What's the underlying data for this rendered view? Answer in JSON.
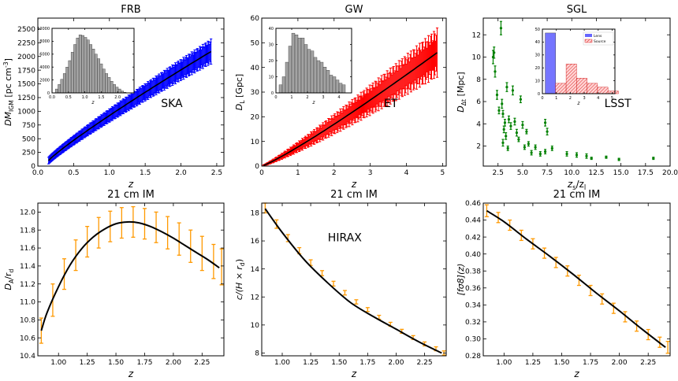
{
  "chart_data": [
    {
      "id": "frb",
      "type": "scatter",
      "style": "errorbar-band",
      "title": "FRB",
      "xlabel": "z",
      "ylabel": "DM_IGM [pc cm^-3]",
      "ylabel_parts": [
        "DM",
        "IGM",
        " [pc cm",
        "-3",
        "]"
      ],
      "xlim": [
        0,
        2.6
      ],
      "ylim": [
        0,
        2700
      ],
      "xticks": [
        0.0,
        0.5,
        1.0,
        1.5,
        2.0,
        2.5
      ],
      "xtick_labels": [
        "0.0",
        "0.5",
        "1.0",
        "1.5",
        "2.0",
        "2.5"
      ],
      "yticks": [
        0,
        250,
        500,
        750,
        1000,
        1250,
        1500,
        1750,
        2000,
        2250,
        2500
      ],
      "ytick_labels": [
        "0",
        "250",
        "500",
        "750",
        "1000",
        "1250",
        "1500",
        "1750",
        "2000",
        "2250",
        "2500"
      ],
      "annotation": "SKA",
      "color": "#0000ff",
      "x_range": [
        0.15,
        2.42
      ],
      "y_at_xmin": 100,
      "y_at_xmax": 2090,
      "curve_exponent": 0.9,
      "err_at_xmin": 60,
      "err_at_xmax": 230,
      "n_points": 220,
      "inset": {
        "type": "bar",
        "xlabel": "z",
        "xlim": [
          0,
          2.5
        ],
        "ylim": [
          0,
          10000
        ],
        "xticks": [
          0.0,
          0.5,
          1.0,
          1.5,
          2.0
        ],
        "xtick_labels": [
          "0.0",
          "0.5",
          "1.0",
          "1.5",
          "2.0"
        ],
        "yticks": [
          0,
          2000,
          4000,
          6000,
          8000,
          10000
        ],
        "ytick_labels": [
          "0",
          "2000",
          "4000",
          "6000",
          "8000",
          "10000"
        ],
        "bin_edges_start": 0.1,
        "bin_width": 0.08,
        "values": [
          600,
          1300,
          2100,
          3000,
          4000,
          5000,
          6300,
          7500,
          8500,
          9000,
          8900,
          8600,
          8200,
          7500,
          6800,
          6000,
          5300,
          4500,
          3700,
          3000,
          2400,
          1800,
          1300,
          900,
          600,
          300,
          100
        ],
        "color": "#999999"
      }
    },
    {
      "id": "gw",
      "type": "scatter",
      "style": "errorbar-band",
      "title": "GW",
      "xlabel": "z",
      "ylabel": "D_L [Gpc]",
      "ylabel_parts": [
        "D",
        "L",
        " [Gpc]"
      ],
      "xlim": [
        0,
        5.1
      ],
      "ylim": [
        0,
        60
      ],
      "xticks": [
        0,
        1,
        2,
        3,
        4,
        5
      ],
      "xtick_labels": [
        "0",
        "1",
        "2",
        "3",
        "4",
        "5"
      ],
      "yticks": [
        0,
        10,
        20,
        30,
        40,
        50,
        60
      ],
      "ytick_labels": [
        "0",
        "10",
        "20",
        "30",
        "40",
        "50",
        "60"
      ],
      "annotation": "ET",
      "color": "#ff0000",
      "x_range": [
        0.05,
        4.85
      ],
      "y_at_xmin": 0.3,
      "y_at_xmax": 46,
      "curve_exponent": 1.12,
      "err_at_xmin": 0.2,
      "err_at_xmax": 10,
      "n_points": 220,
      "inset": {
        "type": "bar",
        "xlabel": "z",
        "xlim": [
          0,
          4.8
        ],
        "ylim": [
          0,
          40
        ],
        "xticks": [
          0,
          1,
          2,
          3,
          4
        ],
        "xtick_labels": [
          "0",
          "1",
          "2",
          "3",
          "4"
        ],
        "yticks": [
          0,
          10,
          20,
          30,
          40
        ],
        "ytick_labels": [
          "0",
          "10",
          "20",
          "30",
          "40"
        ],
        "bin_edges_start": 0.2,
        "bin_width": 0.2,
        "values": [
          5,
          10,
          19,
          29,
          37,
          36,
          34,
          34,
          30,
          27,
          26,
          22,
          20,
          19,
          16,
          14,
          11,
          10,
          8,
          6,
          5
        ],
        "color": "#999999"
      }
    },
    {
      "id": "sgl",
      "type": "scatter",
      "style": "errorbar-points",
      "title": "SGL",
      "xlabel": "z_s/z_l",
      "ylabel": "D_Δt [Mpc]",
      "xlabel_parts": [
        "z",
        "s",
        "/z",
        "l"
      ],
      "ylabel_parts": [
        "D",
        "Δt",
        " [Mpc]"
      ],
      "xlim": [
        1,
        20
      ],
      "ylim": [
        0.2,
        13.5
      ],
      "xticks": [
        2.5,
        5.0,
        7.5,
        10.0,
        12.5,
        15.0,
        17.5,
        20.0
      ],
      "xtick_labels": [
        "2.5",
        "5.0",
        "7.5",
        "10.0",
        "12.5",
        "15.0",
        "17.5",
        "20.0"
      ],
      "yticks": [
        2,
        4,
        6,
        8,
        10,
        12
      ],
      "ytick_labels": [
        "2",
        "4",
        "6",
        "8",
        "10",
        "12"
      ],
      "annotation": "LSST",
      "color": "#008000",
      "points": [
        [
          2.0,
          10.0,
          0.6
        ],
        [
          2.1,
          10.4,
          0.5
        ],
        [
          2.2,
          8.7,
          0.5
        ],
        [
          2.4,
          6.6,
          0.4
        ],
        [
          2.8,
          12.6,
          0.6
        ],
        [
          2.9,
          5.8,
          0.4
        ],
        [
          2.6,
          5.2,
          0.3
        ],
        [
          3.0,
          4.9,
          0.3
        ],
        [
          3.2,
          4.1,
          0.3
        ],
        [
          3.4,
          7.3,
          0.4
        ],
        [
          3.6,
          4.4,
          0.3
        ],
        [
          3.1,
          3.5,
          0.3
        ],
        [
          3.3,
          2.9,
          0.3
        ],
        [
          3.0,
          2.3,
          0.3
        ],
        [
          3.5,
          1.8,
          0.2
        ],
        [
          3.8,
          3.8,
          0.3
        ],
        [
          4.0,
          7.0,
          0.4
        ],
        [
          4.2,
          4.2,
          0.3
        ],
        [
          4.4,
          3.2,
          0.3
        ],
        [
          4.6,
          2.6,
          0.2
        ],
        [
          4.8,
          6.2,
          0.3
        ],
        [
          5.0,
          3.9,
          0.3
        ],
        [
          5.2,
          1.9,
          0.2
        ],
        [
          5.4,
          3.3,
          0.2
        ],
        [
          5.6,
          2.2,
          0.2
        ],
        [
          5.9,
          1.4,
          0.2
        ],
        [
          6.3,
          1.9,
          0.2
        ],
        [
          6.8,
          1.3,
          0.2
        ],
        [
          7.3,
          1.5,
          0.2
        ],
        [
          7.5,
          3.3,
          0.3
        ],
        [
          7.3,
          4.1,
          0.3
        ],
        [
          8.0,
          1.8,
          0.2
        ],
        [
          9.5,
          1.3,
          0.2
        ],
        [
          10.5,
          1.2,
          0.2
        ],
        [
          11.5,
          1.1,
          0.2
        ],
        [
          12.0,
          0.9,
          0.1
        ],
        [
          13.5,
          1.0,
          0.1
        ],
        [
          14.8,
          0.8,
          0.1
        ],
        [
          18.3,
          0.9,
          0.1
        ]
      ],
      "inset": {
        "type": "bar",
        "xlabel": "z",
        "xlim": [
          0,
          5.2
        ],
        "ylim": [
          0,
          50
        ],
        "xticks": [
          0,
          1,
          2,
          3,
          4,
          5
        ],
        "xtick_labels": [
          "0",
          "1",
          "2",
          "3",
          "4",
          "5"
        ],
        "yticks": [
          0,
          10,
          20,
          30,
          40,
          50
        ],
        "ytick_labels": [
          "0",
          "10",
          "20",
          "30",
          "40",
          "50"
        ],
        "legend": [
          "Lens",
          "Source"
        ],
        "legend_position": "top-right",
        "series": [
          {
            "name": "Lens",
            "bin_edges_start": 0.2,
            "bin_width": 0.75,
            "values": [
              47,
              3
            ],
            "color": "#6666ff"
          },
          {
            "name": "Source",
            "bin_edges_start": 0.2,
            "bin_width": 0.75,
            "values": [
              0,
              8,
              23,
              12,
              8,
              5,
              2
            ],
            "color": "#ff6666"
          }
        ]
      }
    },
    {
      "id": "im_da",
      "type": "line",
      "style": "errorbar-curve",
      "title": "21 cm IM",
      "xlabel": "z",
      "ylabel": "D_A/r_d",
      "ylabel_parts": [
        "D",
        "A",
        "/r",
        "d"
      ],
      "xlim": [
        0.82,
        2.44
      ],
      "ylim": [
        10.4,
        12.1
      ],
      "xticks": [
        1.0,
        1.25,
        1.5,
        1.75,
        2.0,
        2.25
      ],
      "xtick_labels": [
        "1.00",
        "1.25",
        "1.50",
        "1.75",
        "2.00",
        "2.25"
      ],
      "yticks": [
        10.4,
        10.6,
        10.8,
        11.0,
        11.2,
        11.4,
        11.6,
        11.8,
        12.0
      ],
      "ytick_labels": [
        "10.4",
        "10.6",
        "10.8",
        "11.0",
        "11.2",
        "11.4",
        "11.6",
        "11.8",
        "12.0"
      ],
      "color": "#ff9900",
      "curve_x": [
        0.85,
        0.9,
        1.0,
        1.1,
        1.2,
        1.3,
        1.4,
        1.5,
        1.6,
        1.7,
        1.8,
        1.9,
        2.0,
        2.1,
        2.2,
        2.3,
        2.4
      ],
      "curve_y": [
        10.68,
        10.88,
        11.17,
        11.41,
        11.59,
        11.72,
        11.81,
        11.87,
        11.89,
        11.88,
        11.84,
        11.78,
        11.71,
        11.63,
        11.55,
        11.47,
        11.38
      ],
      "points_x": [
        0.85,
        0.95,
        1.05,
        1.15,
        1.25,
        1.35,
        1.45,
        1.55,
        1.65,
        1.75,
        1.85,
        1.95,
        2.05,
        2.15,
        2.25,
        2.35,
        2.42
      ],
      "points_y": [
        10.68,
        11.02,
        11.31,
        11.52,
        11.67,
        11.77,
        11.84,
        11.88,
        11.89,
        11.87,
        11.83,
        11.77,
        11.7,
        11.62,
        11.54,
        11.45,
        11.39
      ],
      "errors": [
        0.14,
        0.18,
        0.17,
        0.17,
        0.17,
        0.17,
        0.17,
        0.17,
        0.17,
        0.17,
        0.17,
        0.18,
        0.18,
        0.18,
        0.19,
        0.19,
        0.2
      ]
    },
    {
      "id": "im_hz",
      "type": "line",
      "style": "errorbar-curve",
      "title": "21 cm IM",
      "xlabel": "z",
      "ylabel": "c/(H × r_d)",
      "ylabel_parts": [
        "c/(H × r",
        "d",
        ")"
      ],
      "annotation": "HIRAX",
      "xlim": [
        0.82,
        2.44
      ],
      "ylim": [
        7.8,
        18.7
      ],
      "xticks": [
        1.0,
        1.25,
        1.5,
        1.75,
        2.0,
        2.25
      ],
      "xtick_labels": [
        "1.00",
        "1.25",
        "1.50",
        "1.75",
        "2.00",
        "2.25"
      ],
      "yticks": [
        8,
        10,
        12,
        14,
        16,
        18
      ],
      "ytick_labels": [
        "8",
        "10",
        "12",
        "14",
        "16",
        "18"
      ],
      "color": "#ff9900",
      "curve_x": [
        0.85,
        1.0,
        1.2,
        1.4,
        1.6,
        1.8,
        2.0,
        2.2,
        2.4
      ],
      "curve_y": [
        18.3,
        16.6,
        14.6,
        13.0,
        11.6,
        10.6,
        9.7,
        8.8,
        8.0
      ],
      "points_x": [
        0.85,
        0.95,
        1.05,
        1.15,
        1.25,
        1.35,
        1.45,
        1.55,
        1.65,
        1.75,
        1.85,
        1.95,
        2.05,
        2.15,
        2.25,
        2.35,
        2.42
      ],
      "points_y": [
        18.35,
        17.2,
        16.2,
        15.3,
        14.45,
        13.7,
        12.95,
        12.3,
        11.65,
        11.1,
        10.55,
        10.05,
        9.55,
        9.1,
        8.65,
        8.3,
        8.0
      ],
      "errors": [
        0.35,
        0.3,
        0.25,
        0.22,
        0.2,
        0.18,
        0.17,
        0.16,
        0.15,
        0.14,
        0.14,
        0.14,
        0.14,
        0.14,
        0.14,
        0.14,
        0.15
      ]
    },
    {
      "id": "im_fs8",
      "type": "line",
      "style": "errorbar-curve",
      "title": "21 cm IM",
      "xlabel": "z",
      "ylabel": "[fσ8](z)",
      "ylabel_parts": [
        "[fσ8](z)"
      ],
      "xlim": [
        0.82,
        2.44
      ],
      "ylim": [
        0.28,
        0.46
      ],
      "xticks": [
        1.0,
        1.25,
        1.5,
        1.75,
        2.0,
        2.25
      ],
      "xtick_labels": [
        "1.00",
        "1.25",
        "1.50",
        "1.75",
        "2.00",
        "2.25"
      ],
      "yticks": [
        0.28,
        0.3,
        0.32,
        0.34,
        0.36,
        0.38,
        0.4,
        0.42,
        0.44,
        0.46
      ],
      "ytick_labels": [
        "0.28",
        "0.30",
        "0.32",
        "0.34",
        "0.36",
        "0.38",
        "0.40",
        "0.42",
        "0.44",
        "0.46"
      ],
      "color": "#ff9900",
      "curve_x": [
        0.85,
        1.0,
        1.2,
        1.4,
        1.6,
        1.8,
        2.0,
        2.2,
        2.4
      ],
      "curve_y": [
        0.451,
        0.438,
        0.417,
        0.397,
        0.376,
        0.354,
        0.333,
        0.311,
        0.29
      ],
      "points_x": [
        0.85,
        0.95,
        1.05,
        1.15,
        1.25,
        1.35,
        1.45,
        1.55,
        1.65,
        1.75,
        1.85,
        1.95,
        2.05,
        2.15,
        2.25,
        2.35,
        2.42
      ],
      "points_y": [
        0.451,
        0.443,
        0.434,
        0.422,
        0.412,
        0.401,
        0.39,
        0.38,
        0.369,
        0.357,
        0.347,
        0.336,
        0.326,
        0.315,
        0.305,
        0.296,
        0.29
      ],
      "errors": [
        0.007,
        0.006,
        0.006,
        0.006,
        0.006,
        0.006,
        0.006,
        0.006,
        0.006,
        0.006,
        0.006,
        0.006,
        0.006,
        0.006,
        0.006,
        0.006,
        0.007
      ]
    }
  ]
}
